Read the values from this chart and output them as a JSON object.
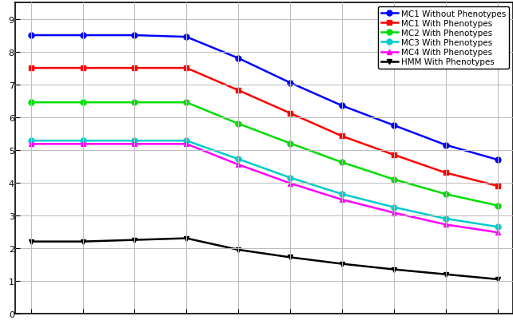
{
  "x": [
    1,
    2,
    3,
    4,
    5,
    6,
    7,
    8,
    9,
    10
  ],
  "MC1_without": [
    8.5,
    8.5,
    8.5,
    8.45,
    7.8,
    7.05,
    6.35,
    5.75,
    5.15,
    4.7
  ],
  "MC1_with": [
    7.5,
    7.5,
    7.5,
    7.5,
    6.82,
    6.12,
    5.42,
    4.85,
    4.3,
    3.9
  ],
  "MC2_with": [
    6.45,
    6.45,
    6.45,
    6.45,
    5.8,
    5.2,
    4.62,
    4.1,
    3.65,
    3.3
  ],
  "MC3_with": [
    5.28,
    5.28,
    5.28,
    5.28,
    4.72,
    4.15,
    3.65,
    3.25,
    2.9,
    2.65
  ],
  "MC4_with": [
    5.18,
    5.18,
    5.18,
    5.18,
    4.55,
    3.98,
    3.48,
    3.08,
    2.72,
    2.48
  ],
  "HMM_with": [
    2.2,
    2.2,
    2.25,
    2.3,
    1.95,
    1.72,
    1.52,
    1.35,
    1.2,
    1.05
  ],
  "colors": {
    "MC1_without": "#0000FF",
    "MC1_with": "#FF0000",
    "MC2_with": "#00DD00",
    "MC3_with": "#00CCCC",
    "MC4_with": "#FF00FF",
    "HMM_with": "#000000"
  },
  "labels": {
    "MC1_without": "MC1 Without Phenotypes",
    "MC1_with": "MC1 With Phenotypes",
    "MC2_with": "MC2 With Phenotypes",
    "MC3_with": "MC3 With Phenotypes",
    "MC4_with": "MC4 With Phenotypes",
    "HMM_with": "HMM With Phenotypes"
  },
  "ylim": [
    0,
    9.5
  ],
  "xlim_min": 0.7,
  "xlim_max": 10.3,
  "ytick_vals": [
    0,
    1,
    2,
    3,
    4,
    5,
    6,
    7,
    8,
    9
  ],
  "xtick_vals": [
    1,
    2,
    3,
    4,
    5,
    6,
    7,
    8,
    9,
    10
  ],
  "background_color": "#FFFFFF",
  "grid_color": "#BBBBBB",
  "linewidth": 1.8,
  "markersize": 5,
  "legend_fontsize": 7.5
}
